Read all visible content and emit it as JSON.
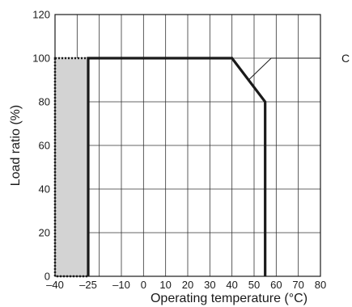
{
  "chart_data": {
    "type": "line",
    "xlabel": "Operating temperature (°C)",
    "ylabel": "Load ratio (%)",
    "xlim": [
      -40,
      80
    ],
    "ylim": [
      0,
      120
    ],
    "grid": true,
    "x_ticks": [
      {
        "value": -40,
        "label": "–40"
      },
      {
        "value": -25,
        "label": "–25"
      },
      {
        "value": -10,
        "label": "–10"
      },
      {
        "value": 0,
        "label": "0"
      },
      {
        "value": 10,
        "label": "10"
      },
      {
        "value": 20,
        "label": "20"
      },
      {
        "value": 30,
        "label": "30"
      },
      {
        "value": 40,
        "label": "40"
      },
      {
        "value": 50,
        "label": "50"
      },
      {
        "value": 60,
        "label": "60"
      },
      {
        "value": 70,
        "label": "70"
      },
      {
        "value": 80,
        "label": "80"
      }
    ],
    "y_ticks": [
      0,
      20,
      40,
      60,
      80,
      100,
      120
    ],
    "series": [
      {
        "x": [
          -25,
          -25,
          40,
          55,
          55
        ],
        "y": [
          0,
          100,
          100,
          80,
          0
        ],
        "color": "#1a1a1a"
      }
    ],
    "shaded_region": {
      "x": [
        -40,
        -25
      ],
      "y": [
        0,
        100
      ],
      "fill": "#d3d3d3",
      "border": "dotted"
    },
    "annotation": {
      "label": "C",
      "point": {
        "x": 47.5,
        "y": 90
      }
    }
  }
}
